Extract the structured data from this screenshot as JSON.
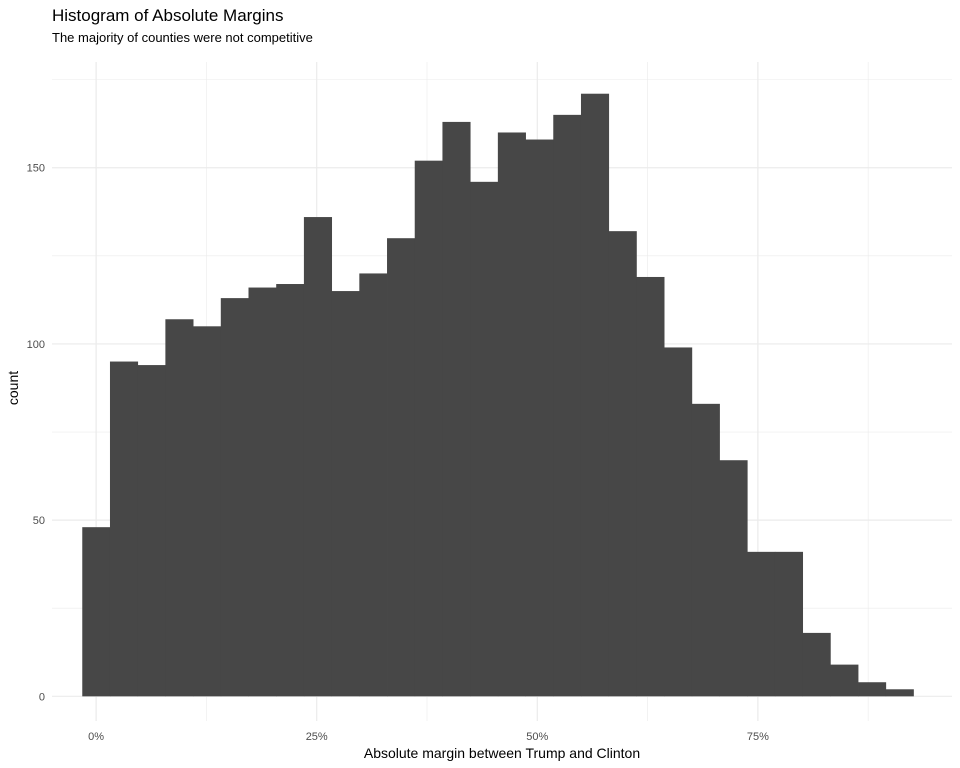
{
  "chart_data": {
    "type": "bar",
    "subtype": "histogram",
    "title": "Histogram of Absolute Margins",
    "subtitle": "The majority of counties were not competitive",
    "xlabel": "Absolute margin between Trump and Clinton",
    "ylabel": "count",
    "x_is_percent": true,
    "bin_width": 0.0314,
    "bin_start": -0.0157,
    "values": [
      48,
      95,
      94,
      107,
      105,
      113,
      116,
      117,
      136,
      115,
      120,
      130,
      152,
      163,
      146,
      160,
      158,
      165,
      171,
      132,
      119,
      99,
      83,
      67,
      41,
      41,
      18,
      9,
      4,
      2
    ],
    "xlim": [
      -0.05,
      0.97
    ],
    "ylim": [
      -7,
      180
    ],
    "x_ticks": [
      0,
      0.25,
      0.5,
      0.75
    ],
    "x_tick_labels": [
      "0%",
      "25%",
      "50%",
      "75%"
    ],
    "y_ticks": [
      0,
      50,
      100,
      150
    ],
    "y_tick_labels": [
      "0",
      "50",
      "100",
      "150"
    ],
    "grid": true,
    "bar_color": "#474747",
    "gridline_color": "#ebebeb",
    "background_color": "#ffffff"
  }
}
